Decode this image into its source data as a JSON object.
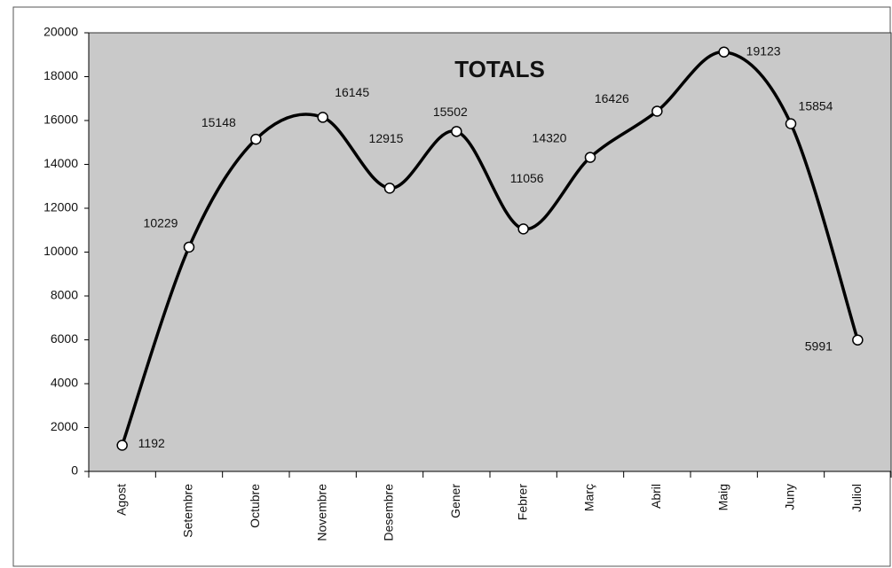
{
  "chart_data": {
    "type": "line",
    "title": "TOTALS",
    "categories": [
      "Agost",
      "Setembre",
      "Octubre",
      "Novembre",
      "Desembre",
      "Gener",
      "Febrer",
      "Març",
      "Abril",
      "Maig",
      "Juny",
      "Juliol"
    ],
    "values": [
      1192,
      10229,
      15148,
      16145,
      12915,
      15502,
      11056,
      14320,
      16426,
      19123,
      15854,
      5991
    ],
    "color": "#000000",
    "ylim": [
      0,
      20000
    ],
    "yticks": [
      0,
      2000,
      4000,
      6000,
      8000,
      10000,
      12000,
      14000,
      16000,
      18000,
      20000
    ],
    "grid": false
  }
}
